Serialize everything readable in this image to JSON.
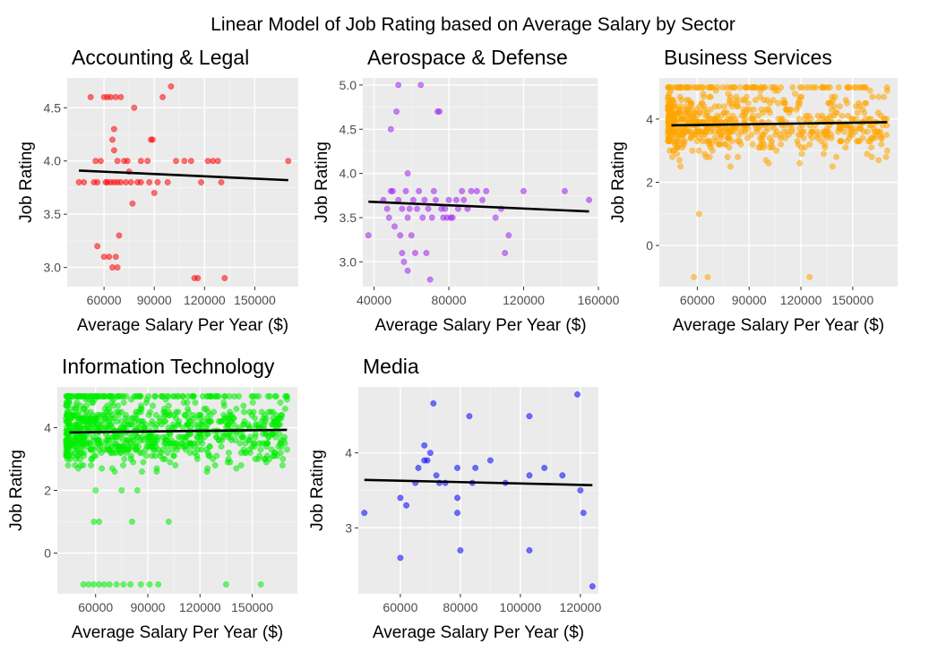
{
  "figure_title": "Linear Model of Job Rating based on Average Salary by Sector",
  "chart_data": [
    {
      "type": "scatter",
      "title": "Accounting & Legal",
      "xlabel": "Average Salary Per Year ($)",
      "ylabel": "Job Rating",
      "color": "#ff0000",
      "xlim": [
        38000,
        176000
      ],
      "ylim": [
        2.82,
        4.78
      ],
      "xticks": [
        60000,
        90000,
        120000,
        150000
      ],
      "xtick_labels": [
        "60000",
        "90000",
        "120000",
        "150000"
      ],
      "yticks": [
        3.0,
        3.5,
        4.0,
        4.5
      ],
      "ytick_labels": [
        "3.0",
        "3.5",
        "4.0",
        "4.5"
      ],
      "trend": {
        "x": [
          45000,
          170000
        ],
        "y": [
          3.91,
          3.82
        ]
      },
      "points": [
        [
          45000,
          3.8
        ],
        [
          48000,
          3.8
        ],
        [
          52000,
          4.6
        ],
        [
          54000,
          3.8
        ],
        [
          55000,
          4.0
        ],
        [
          56000,
          3.8
        ],
        [
          56000,
          3.2
        ],
        [
          58000,
          4.0
        ],
        [
          60000,
          3.1
        ],
        [
          60000,
          4.6
        ],
        [
          61000,
          3.8
        ],
        [
          62000,
          3.8
        ],
        [
          62000,
          4.6
        ],
        [
          63000,
          3.1
        ],
        [
          64000,
          3.8
        ],
        [
          64000,
          4.6
        ],
        [
          65000,
          3.0
        ],
        [
          65000,
          4.2
        ],
        [
          66000,
          3.8
        ],
        [
          66000,
          4.3
        ],
        [
          66000,
          4.1
        ],
        [
          67000,
          3.1
        ],
        [
          67000,
          4.6
        ],
        [
          68000,
          3.0
        ],
        [
          68000,
          3.8
        ],
        [
          68000,
          4.0
        ],
        [
          69000,
          3.3
        ],
        [
          70000,
          3.8
        ],
        [
          70000,
          4.6
        ],
        [
          72000,
          4.0
        ],
        [
          73000,
          3.8
        ],
        [
          74000,
          4.0
        ],
        [
          75000,
          3.9
        ],
        [
          76000,
          3.8
        ],
        [
          77000,
          3.6
        ],
        [
          78000,
          4.5
        ],
        [
          80000,
          3.8
        ],
        [
          82000,
          3.8
        ],
        [
          82000,
          4.0
        ],
        [
          86000,
          4.0
        ],
        [
          87000,
          3.8
        ],
        [
          88000,
          4.2
        ],
        [
          89000,
          4.2
        ],
        [
          90000,
          3.7
        ],
        [
          92000,
          3.8
        ],
        [
          95000,
          4.6
        ],
        [
          98000,
          3.8
        ],
        [
          100000,
          4.7
        ],
        [
          103000,
          4.0
        ],
        [
          108000,
          4.0
        ],
        [
          112000,
          4.0
        ],
        [
          114000,
          2.9
        ],
        [
          116000,
          2.9
        ],
        [
          118000,
          3.8
        ],
        [
          122000,
          4.0
        ],
        [
          125000,
          4.0
        ],
        [
          128000,
          4.0
        ],
        [
          130000,
          3.8
        ],
        [
          132000,
          2.9
        ],
        [
          170000,
          4.0
        ]
      ]
    },
    {
      "type": "scatter",
      "title": "Aerospace & Defense",
      "xlabel": "Average Salary Per Year ($)",
      "ylabel": "Job Rating",
      "color": "#a020f0",
      "xlim": [
        34000,
        160000
      ],
      "ylim": [
        2.72,
        5.08
      ],
      "xticks": [
        40000,
        80000,
        120000,
        160000
      ],
      "xtick_labels": [
        "40000",
        "80000",
        "120000",
        "160000"
      ],
      "yticks": [
        3.0,
        3.5,
        4.0,
        4.5,
        5.0
      ],
      "ytick_labels": [
        "3.0",
        "3.5",
        "4.0",
        "4.5",
        "5.0"
      ],
      "trend": {
        "x": [
          37000,
          155000
        ],
        "y": [
          3.68,
          3.57
        ]
      },
      "points": [
        [
          37000,
          3.3
        ],
        [
          45000,
          3.7
        ],
        [
          47000,
          3.6
        ],
        [
          48000,
          3.5
        ],
        [
          49000,
          3.8
        ],
        [
          49000,
          4.5
        ],
        [
          50000,
          3.8
        ],
        [
          51000,
          3.4
        ],
        [
          52000,
          4.7
        ],
        [
          53000,
          5.0
        ],
        [
          53000,
          3.7
        ],
        [
          54000,
          3.3
        ],
        [
          55000,
          3.1
        ],
        [
          55000,
          3.6
        ],
        [
          56000,
          3.0
        ],
        [
          57000,
          3.8
        ],
        [
          58000,
          2.9
        ],
        [
          58000,
          3.5
        ],
        [
          58000,
          4.0
        ],
        [
          59000,
          3.6
        ],
        [
          60000,
          3.3
        ],
        [
          61000,
          3.7
        ],
        [
          62000,
          3.1
        ],
        [
          63000,
          3.6
        ],
        [
          64000,
          3.8
        ],
        [
          65000,
          5.0
        ],
        [
          66000,
          3.5
        ],
        [
          67000,
          3.7
        ],
        [
          68000,
          3.1
        ],
        [
          69000,
          3.6
        ],
        [
          70000,
          2.8
        ],
        [
          71000,
          3.5
        ],
        [
          72000,
          3.8
        ],
        [
          73000,
          3.7
        ],
        [
          74000,
          4.7
        ],
        [
          75000,
          4.7
        ],
        [
          76000,
          3.6
        ],
        [
          77000,
          3.5
        ],
        [
          78000,
          3.6
        ],
        [
          79000,
          3.5
        ],
        [
          80000,
          3.7
        ],
        [
          81000,
          3.5
        ],
        [
          82000,
          3.5
        ],
        [
          84000,
          3.7
        ],
        [
          85000,
          3.6
        ],
        [
          87000,
          3.8
        ],
        [
          88000,
          3.7
        ],
        [
          90000,
          3.6
        ],
        [
          92000,
          3.8
        ],
        [
          95000,
          3.8
        ],
        [
          98000,
          3.7
        ],
        [
          100000,
          3.8
        ],
        [
          105000,
          3.5
        ],
        [
          108000,
          3.6
        ],
        [
          110000,
          3.1
        ],
        [
          112000,
          3.3
        ],
        [
          120000,
          3.8
        ],
        [
          142000,
          3.8
        ],
        [
          155000,
          3.7
        ]
      ]
    },
    {
      "type": "scatter",
      "title": "Business Services",
      "xlabel": "Average Salary Per Year ($)",
      "ylabel": "Job Rating",
      "color": "#ffa500",
      "xlim": [
        38000,
        176000
      ],
      "ylim": [
        -1.3,
        5.3
      ],
      "xticks": [
        60000,
        90000,
        120000,
        150000
      ],
      "xtick_labels": [
        "60000",
        "90000",
        "120000",
        "150000"
      ],
      "yticks": [
        0,
        2,
        4
      ],
      "ytick_labels": [
        "0",
        "2",
        "4"
      ],
      "trend": {
        "x": [
          45000,
          170000
        ],
        "y": [
          3.8,
          3.9
        ]
      },
      "cluster": {
        "n": 700,
        "seed": 7,
        "x_range": [
          43000,
          170000
        ],
        "y_range": [
          2.3,
          5.0
        ]
      },
      "points": [
        [
          58000,
          -1.0
        ],
        [
          66000,
          -1.0
        ],
        [
          61000,
          1.0
        ],
        [
          125000,
          -1.0
        ],
        [
          45000,
          4.0
        ],
        [
          150000,
          4.0
        ],
        [
          160000,
          4.9
        ],
        [
          170000,
          4.9
        ],
        [
          170000,
          3.0
        ],
        [
          168000,
          4.0
        ],
        [
          165000,
          2.7
        ],
        [
          165000,
          4.7
        ]
      ]
    },
    {
      "type": "scatter",
      "title": "Information Technology",
      "xlabel": "Average Salary Per Year ($)",
      "ylabel": "Job Rating",
      "color": "#00ee00",
      "xlim": [
        38000,
        176000
      ],
      "ylim": [
        -1.3,
        5.3
      ],
      "xticks": [
        60000,
        90000,
        120000,
        150000
      ],
      "xtick_labels": [
        "60000",
        "90000",
        "120000",
        "150000"
      ],
      "yticks": [
        0,
        2,
        4
      ],
      "ytick_labels": [
        "0",
        "2",
        "4"
      ],
      "trend": {
        "x": [
          45000,
          170000
        ],
        "y": [
          3.85,
          3.93
        ]
      },
      "cluster": {
        "n": 900,
        "seed": 13,
        "x_range": [
          43000,
          170000
        ],
        "y_range": [
          2.0,
          5.0
        ]
      },
      "points": [
        [
          53000,
          -1.0
        ],
        [
          56000,
          -1.0
        ],
        [
          59000,
          -1.0
        ],
        [
          62000,
          -1.0
        ],
        [
          65000,
          -1.0
        ],
        [
          68000,
          -1.0
        ],
        [
          72000,
          -1.0
        ],
        [
          76000,
          -1.0
        ],
        [
          80000,
          -1.0
        ],
        [
          86000,
          -1.0
        ],
        [
          91000,
          -1.0
        ],
        [
          96000,
          -1.0
        ],
        [
          135000,
          -1.0
        ],
        [
          155000,
          -1.0
        ],
        [
          59000,
          1.0
        ],
        [
          62000,
          1.0
        ],
        [
          81000,
          1.0
        ],
        [
          102000,
          1.0
        ],
        [
          75000,
          2.0
        ],
        [
          84000,
          2.0
        ],
        [
          60000,
          2.0
        ],
        [
          170000,
          4.9
        ],
        [
          170000,
          3.3
        ],
        [
          165000,
          4.1
        ]
      ]
    },
    {
      "type": "scatter",
      "title": "Media",
      "xlabel": "Average Salary Per Year ($)",
      "ylabel": "Job Rating",
      "color": "#0000ff",
      "xlim": [
        46000,
        126000
      ],
      "ylim": [
        2.12,
        4.88
      ],
      "xticks": [
        60000,
        80000,
        100000,
        120000
      ],
      "xtick_labels": [
        "60000",
        "80000",
        "100000",
        "120000"
      ],
      "yticks": [
        3,
        4
      ],
      "ytick_labels": [
        "3",
        "4"
      ],
      "trend": {
        "x": [
          48000,
          124000
        ],
        "y": [
          3.64,
          3.57
        ]
      },
      "points": [
        [
          48000,
          3.2
        ],
        [
          60000,
          3.4
        ],
        [
          60000,
          2.6
        ],
        [
          62000,
          3.3
        ],
        [
          65000,
          3.6
        ],
        [
          66000,
          3.8
        ],
        [
          68000,
          4.1
        ],
        [
          68000,
          3.9
        ],
        [
          69000,
          3.9
        ],
        [
          70000,
          4.0
        ],
        [
          71000,
          4.66
        ],
        [
          72000,
          3.7
        ],
        [
          73000,
          3.6
        ],
        [
          75000,
          3.6
        ],
        [
          79000,
          3.8
        ],
        [
          79000,
          3.4
        ],
        [
          79000,
          3.2
        ],
        [
          80000,
          2.7
        ],
        [
          83000,
          4.49
        ],
        [
          84000,
          3.6
        ],
        [
          85000,
          3.8
        ],
        [
          90000,
          3.9
        ],
        [
          95000,
          3.6
        ],
        [
          103000,
          4.49
        ],
        [
          103000,
          3.7
        ],
        [
          103000,
          2.7
        ],
        [
          108000,
          3.8
        ],
        [
          114000,
          3.7
        ],
        [
          119000,
          4.78
        ],
        [
          120000,
          3.5
        ],
        [
          121000,
          3.2
        ],
        [
          124000,
          2.22
        ]
      ]
    }
  ]
}
